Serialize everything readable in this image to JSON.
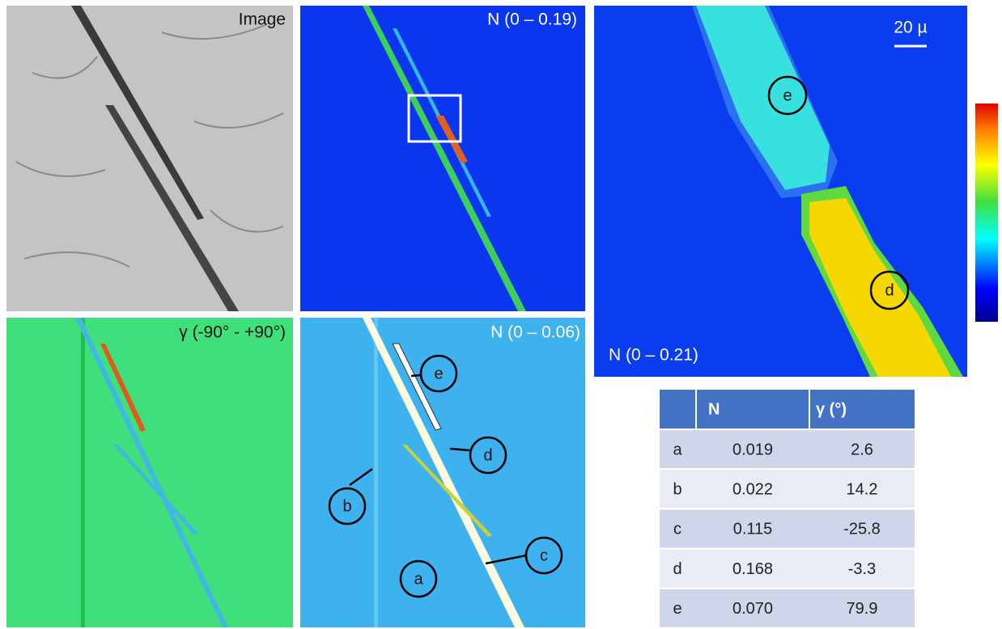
{
  "panels": {
    "image": {
      "label": "Image"
    },
    "n_map": {
      "label": "N (0 – 0.19)"
    },
    "gamma_map": {
      "label": "γ (-90° - +90°)"
    },
    "n_map_low": {
      "label": "N (0 – 0.06)",
      "markers": [
        "e",
        "d",
        "b",
        "c",
        "a"
      ]
    },
    "zoom": {
      "label": "N (0 – 0.21)",
      "scale_bar": "20 µ",
      "markers": [
        "e",
        "d"
      ]
    }
  },
  "table": {
    "columns": [
      "N",
      "γ (°)"
    ],
    "rows": [
      [
        "a",
        "0.019",
        "2.6"
      ],
      [
        "b",
        "0.022",
        "14.2"
      ],
      [
        "c",
        "0.115",
        "-25.8"
      ],
      [
        "d",
        "0.168",
        "-3.3"
      ],
      [
        "e",
        "0.070",
        "79.9"
      ]
    ]
  }
}
